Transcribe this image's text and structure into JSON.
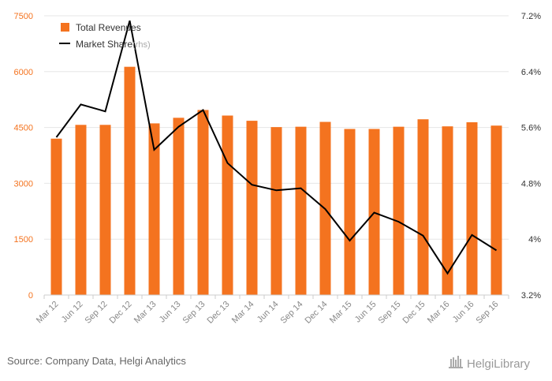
{
  "chart_data": {
    "type": "bar+line",
    "categories": [
      "Mar 12",
      "Jun 12",
      "Sep 12",
      "Dec 12",
      "Mar 13",
      "Jun 13",
      "Sep 13",
      "Dec 13",
      "Mar 14",
      "Jun 14",
      "Sep 14",
      "Dec 14",
      "Mar 15",
      "Jun 15",
      "Sep 15",
      "Dec 15",
      "Mar 16",
      "Jun 16",
      "Sep 16"
    ],
    "series": [
      {
        "name": "Total Revenues",
        "type": "bar",
        "axis": "left",
        "color": "#f4731f",
        "values": [
          4200,
          4570,
          4570,
          6130,
          4610,
          4760,
          4970,
          4820,
          4680,
          4510,
          4520,
          4650,
          4460,
          4460,
          4520,
          4720,
          4530,
          4640,
          4550
        ]
      },
      {
        "name": "Market Share",
        "type": "line",
        "axis": "right",
        "color": "#000000",
        "values": [
          5.46,
          5.93,
          5.83,
          7.13,
          5.28,
          5.61,
          5.85,
          5.09,
          4.78,
          4.7,
          4.73,
          4.43,
          3.98,
          4.38,
          4.25,
          4.05,
          3.51,
          4.06,
          3.84
        ]
      }
    ],
    "y_left": {
      "min": 0,
      "max": 7500,
      "ticks": [
        "0",
        "1500",
        "3000",
        "4500",
        "6000",
        "7500"
      ],
      "tick_values": [
        0,
        1500,
        3000,
        4500,
        6000,
        7500
      ]
    },
    "y_right": {
      "min": 3.2,
      "max": 7.2,
      "ticks": [
        "3.2%",
        "4%",
        "4.8%",
        "5.6%",
        "6.4%",
        "7.2%"
      ],
      "tick_values": [
        3.2,
        4.0,
        4.8,
        5.6,
        6.4,
        7.2
      ]
    },
    "legend": [
      {
        "label": "Total Revenues",
        "suffix": ""
      },
      {
        "label": "Market Share",
        "suffix": "(rhs)"
      }
    ],
    "legend_position": "top-left",
    "grid": true
  },
  "source_text": "Source: Company Data, Helgi Analytics",
  "brand_text": "HelgiLibrary"
}
